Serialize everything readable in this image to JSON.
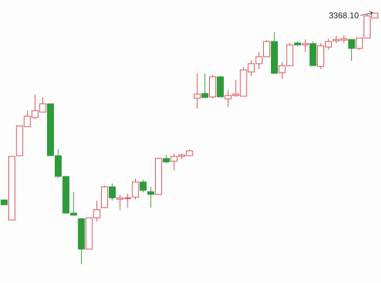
{
  "chart_data": {
    "type": "candlestick",
    "annotation": "3368.10",
    "ylim": [
      2813,
      3394
    ],
    "up_color": "#d9454a",
    "down_color": "#2e9a3a",
    "categories": [
      null,
      null,
      null,
      null,
      null,
      null,
      null,
      null,
      null,
      null,
      null,
      null,
      null,
      null,
      null,
      null,
      null,
      null,
      null,
      null,
      null,
      null,
      null,
      null,
      null,
      null,
      null,
      null,
      null,
      null,
      null,
      null,
      null,
      null,
      null,
      null,
      null,
      null,
      null,
      null,
      null,
      null,
      null,
      null,
      null,
      null,
      null,
      null,
      null
    ],
    "open": [
      2983.5,
      2942.3,
      3074.4,
      3134.0,
      3152.5,
      3163.9,
      3180.9,
      3074.4,
      3031.8,
      2956.5,
      2945.1,
      2882.6,
      2946.6,
      2967.9,
      3010.5,
      2984.9,
      2986.3,
      2989.2,
      3020.4,
      3000.5,
      2994.8,
      3068.7,
      3063.0,
      3072.9,
      3074.4,
      3192.3,
      3202.2,
      3195.1,
      3236.3,
      3190.9,
      3197.9,
      3196.5,
      3246.3,
      3263.3,
      3277.5,
      3308.8,
      3244.8,
      3259.1,
      3305.9,
      3301.7,
      3304.5,
      3257.6,
      3297.4,
      3310.2,
      3311.6,
      3313.0,
      3294.6,
      3315.9,
      3357.1
    ],
    "close": [
      2973.5,
      3072.9,
      3135.5,
      3155.4,
      3166.7,
      3180.9,
      3074.4,
      3031.8,
      2956.5,
      2952.2,
      2882.6,
      2946.6,
      2963.6,
      3010.5,
      2987.7,
      2987.7,
      2987.7,
      3020.4,
      3003.4,
      2994.8,
      3068.7,
      3061.6,
      3072.9,
      3075.8,
      3084.3,
      3200.8,
      3193.7,
      3236.3,
      3195.1,
      3197.9,
      3200.8,
      3250.5,
      3263.3,
      3277.5,
      3308.8,
      3243.4,
      3259.1,
      3301.7,
      3301.7,
      3304.5,
      3259.1,
      3300.2,
      3308.8,
      3313.0,
      3314.5,
      3294.6,
      3315.9,
      3361.3,
      3367.0
    ],
    "high": [
      2983.5,
      3072.9,
      3135.5,
      3166.7,
      3199.4,
      3195.1,
      3180.9,
      3088.6,
      3031.8,
      2999.1,
      2945.1,
      2946.6,
      2982.1,
      3013.3,
      3017.6,
      2993.4,
      2996.3,
      3027.5,
      3024.7,
      3010.5,
      3070.1,
      3075.8,
      3078.7,
      3078.7,
      3087.2,
      3243.4,
      3243.4,
      3240.6,
      3237.7,
      3209.3,
      3230.6,
      3256.2,
      3270.4,
      3287.5,
      3311.6,
      3328.7,
      3266.2,
      3305.9,
      3308.8,
      3313.0,
      3308.8,
      3305.9,
      3314.5,
      3320.1,
      3321.6,
      3313.0,
      3315.9,
      3365.6,
      3368.1
    ],
    "low": [
      2973.5,
      2942.3,
      3074.4,
      3134.0,
      3149.7,
      3163.9,
      3074.4,
      3027.5,
      2956.5,
      2952.2,
      2851.4,
      2882.6,
      2939.4,
      2967.9,
      2982.1,
      2962.2,
      2967.9,
      2984.9,
      2999.1,
      2967.9,
      2994.8,
      3058.8,
      3044.6,
      3067.3,
      3074.4,
      3171.0,
      3193.7,
      3192.3,
      3195.1,
      3173.8,
      3195.1,
      3196.5,
      3237.7,
      3251.9,
      3277.5,
      3243.4,
      3232.1,
      3259.1,
      3300.2,
      3287.5,
      3259.1,
      3251.9,
      3291.7,
      3305.9,
      3305.9,
      3269.0,
      3291.7,
      3315.9,
      3357.1
    ]
  }
}
